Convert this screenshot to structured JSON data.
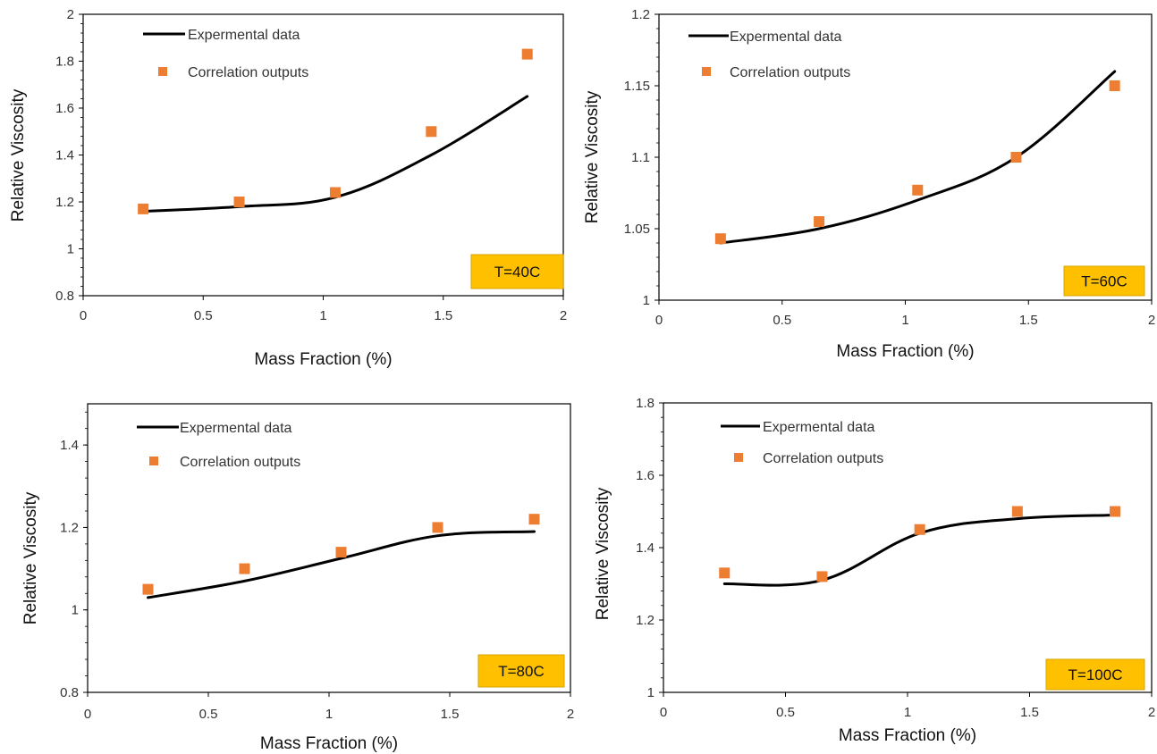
{
  "chart_data": [
    {
      "type": "line",
      "xlabel": "Mass Fraction (%)",
      "ylabel": "Relative Viscosity",
      "xlim": [
        0,
        2
      ],
      "ylim": [
        0.8,
        2
      ],
      "xticks": [
        "0",
        "0.5",
        "1",
        "1.5",
        "2"
      ],
      "yticks": [
        "0.8",
        "1",
        "1.2",
        "1.4",
        "1.6",
        "1.8",
        "2"
      ],
      "grid": false,
      "legend_position": "top-left",
      "series": [
        {
          "name": "Expermental data",
          "style": "line",
          "color": "#000000",
          "x": [
            0.25,
            0.65,
            1.05,
            1.45,
            1.85
          ],
          "y": [
            1.16,
            1.18,
            1.22,
            1.4,
            1.65
          ]
        },
        {
          "name": "Correlation outputs",
          "style": "marker",
          "color": "#ED7D31",
          "x": [
            0.25,
            0.65,
            1.05,
            1.45,
            1.85
          ],
          "y": [
            1.17,
            1.2,
            1.24,
            1.5,
            1.83
          ]
        }
      ],
      "annotation": "T=40C",
      "annotation_bg": "#FFC000"
    },
    {
      "type": "line",
      "xlabel": "Mass Fraction (%)",
      "ylabel": "Relative Viscosity",
      "xlim": [
        0,
        2
      ],
      "ylim": [
        1,
        1.2
      ],
      "xticks": [
        "0",
        "0.5",
        "1",
        "1.5",
        "2"
      ],
      "yticks": [
        "1",
        "1.05",
        "1.1",
        "1.15",
        "1.2"
      ],
      "grid": false,
      "legend_position": "top-left",
      "series": [
        {
          "name": "Expermental data",
          "style": "line",
          "color": "#000000",
          "x": [
            0.25,
            0.65,
            1.05,
            1.45,
            1.85
          ],
          "y": [
            1.04,
            1.05,
            1.07,
            1.1,
            1.16
          ]
        },
        {
          "name": "Correlation outputs",
          "style": "marker",
          "color": "#ED7D31",
          "x": [
            0.25,
            0.65,
            1.05,
            1.45,
            1.85
          ],
          "y": [
            1.043,
            1.055,
            1.077,
            1.1,
            1.15
          ]
        }
      ],
      "annotation": "T=60C",
      "annotation_bg": "#FFC000"
    },
    {
      "type": "line",
      "xlabel": "Mass Fraction (%)",
      "ylabel": "Relative Viscosity",
      "xlim": [
        0,
        2
      ],
      "ylim": [
        0.8,
        1.5
      ],
      "xticks": [
        "0",
        "0.5",
        "1",
        "1.5",
        "2"
      ],
      "yticks": [
        "0.8",
        "1",
        "1.2",
        "1.4"
      ],
      "grid": false,
      "legend_position": "top-left",
      "series": [
        {
          "name": "Expermental data",
          "style": "line",
          "color": "#000000",
          "x": [
            0.25,
            0.65,
            1.05,
            1.45,
            1.85
          ],
          "y": [
            1.03,
            1.07,
            1.125,
            1.18,
            1.19
          ]
        },
        {
          "name": "Correlation outputs",
          "style": "marker",
          "color": "#ED7D31",
          "x": [
            0.25,
            0.65,
            1.05,
            1.45,
            1.85
          ],
          "y": [
            1.05,
            1.1,
            1.14,
            1.2,
            1.22
          ]
        }
      ],
      "annotation": "T=80C",
      "annotation_bg": "#FFC000"
    },
    {
      "type": "line",
      "xlabel": "Mass Fraction (%)",
      "ylabel": "Relative Viscosity",
      "xlim": [
        0,
        2
      ],
      "ylim": [
        1,
        1.8
      ],
      "xticks": [
        "0",
        "0.5",
        "1",
        "1.5",
        "2"
      ],
      "yticks": [
        "1",
        "1.2",
        "1.4",
        "1.6",
        "1.8"
      ],
      "grid": false,
      "legend_position": "top-left",
      "series": [
        {
          "name": "Expermental data",
          "style": "line",
          "color": "#000000",
          "x": [
            0.25,
            0.65,
            1.05,
            1.45,
            1.85
          ],
          "y": [
            1.3,
            1.31,
            1.44,
            1.48,
            1.49
          ]
        },
        {
          "name": "Correlation outputs",
          "style": "marker",
          "color": "#ED7D31",
          "x": [
            0.25,
            0.65,
            1.05,
            1.45,
            1.85
          ],
          "y": [
            1.33,
            1.32,
            1.45,
            1.5,
            1.5
          ]
        }
      ],
      "annotation": "T=100C",
      "annotation_bg": "#FFC000"
    }
  ]
}
